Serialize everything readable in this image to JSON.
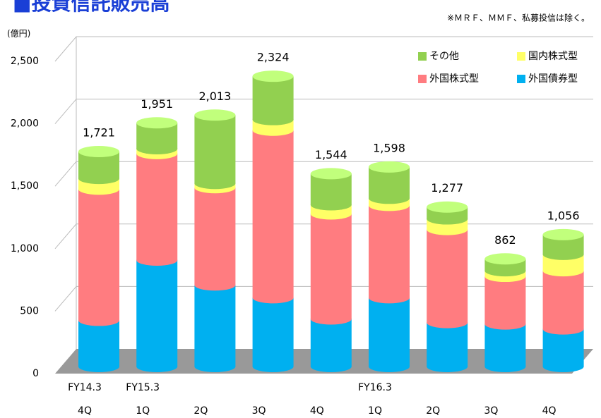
{
  "chart_data": {
    "type": "bar3d_stacked",
    "title": "■投資信託販売高",
    "note": "※ＭＲＦ、ＭＭＦ、私募投信は除く。",
    "unit": "(億円)",
    "categories": [
      "4Q",
      "1Q",
      "2Q",
      "3Q",
      "4Q",
      "1Q",
      "2Q",
      "3Q",
      "4Q"
    ],
    "groups": [
      "FY14.3",
      "FY15.3",
      null,
      null,
      null,
      "FY16.3",
      null,
      null,
      null
    ],
    "totals": [
      1721,
      1951,
      2013,
      2324,
      1544,
      1598,
      1277,
      862,
      1056
    ],
    "totals_labels": [
      "1,721",
      "1,951",
      "2,013",
      "2,324",
      "1,544",
      "1,598",
      "1,277",
      "862",
      "1,056"
    ],
    "series": [
      {
        "name": "外国債券型",
        "color": "#00b0f0",
        "values": [
          370,
          852,
          653,
          551,
          381,
          551,
          352,
          341,
          301
        ]
      },
      {
        "name": "外国株式型",
        "color": "#ff7c80",
        "values": [
          1050,
          853,
          779,
          1341,
          841,
          739,
          745,
          381,
          466
        ]
      },
      {
        "name": "国内株式型",
        "color": "#ffff66",
        "values": [
          86,
          39,
          34,
          85,
          73,
          57,
          85,
          45,
          131
        ]
      },
      {
        "name": "その他",
        "color": "#92d050",
        "values": [
          215,
          207,
          547,
          347,
          249,
          251,
          95,
          95,
          158
        ]
      }
    ],
    "legend_order": [
      3,
      2,
      1,
      0
    ],
    "ylim": [
      0,
      2500
    ],
    "yticks": [
      0,
      500,
      {
        "value": 1000,
        "label": "1,000"
      },
      {
        "value": 1500,
        "label": "1,500"
      },
      {
        "value": 2000,
        "label": "2,000"
      },
      {
        "value": 2500,
        "label": "2,500"
      }
    ],
    "grid": true
  }
}
